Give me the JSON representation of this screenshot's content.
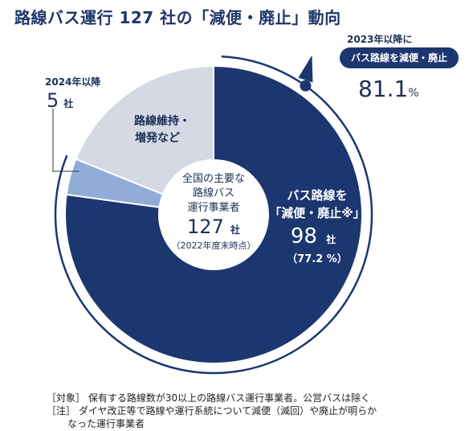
{
  "header": {
    "title": "路線バス運行 127 社の「減便・廃止」動向"
  },
  "center": {
    "line1": "全国の主要な",
    "line2": "路線バス",
    "line3": "運行事業者",
    "count": "127",
    "unit": "社",
    "note": "（2022年度末時点）"
  },
  "callout_2023": {
    "caption": "2023年以降に",
    "badge": "バス路線を減便・廃止",
    "value": "81.1",
    "unit": "%"
  },
  "callout_2024": {
    "caption": "2024年以降",
    "value": "5",
    "unit": "社"
  },
  "footnotes": {
    "target": "［対象］ 保有する路線数が30以上の路線バス運行事業者。公営バスは除く",
    "note_1": "［注］ ダイヤ改正等で路線や運行系統について減便（減回）や廃止が明らか",
    "note_2": "なった運行事業者"
  },
  "colors": {
    "navy": "#1c3670",
    "light_blue": "#91acd9",
    "gray": "#d4d9e3"
  },
  "chart_data": {
    "type": "pie",
    "title": "",
    "total": 127,
    "slices": [
      {
        "label_line1": "バス路線を",
        "label_line2": "「減便・廃止※」",
        "value": 98,
        "unit": "社",
        "percent_label": "（77.2 %）"
      },
      {
        "label_line1": "",
        "label_line2": "",
        "value": 5,
        "unit": "社",
        "percent_label": ""
      },
      {
        "label_line1": "路線維持・",
        "label_line2": "増発など",
        "value": 24,
        "unit": "",
        "percent_label": ""
      }
    ]
  }
}
